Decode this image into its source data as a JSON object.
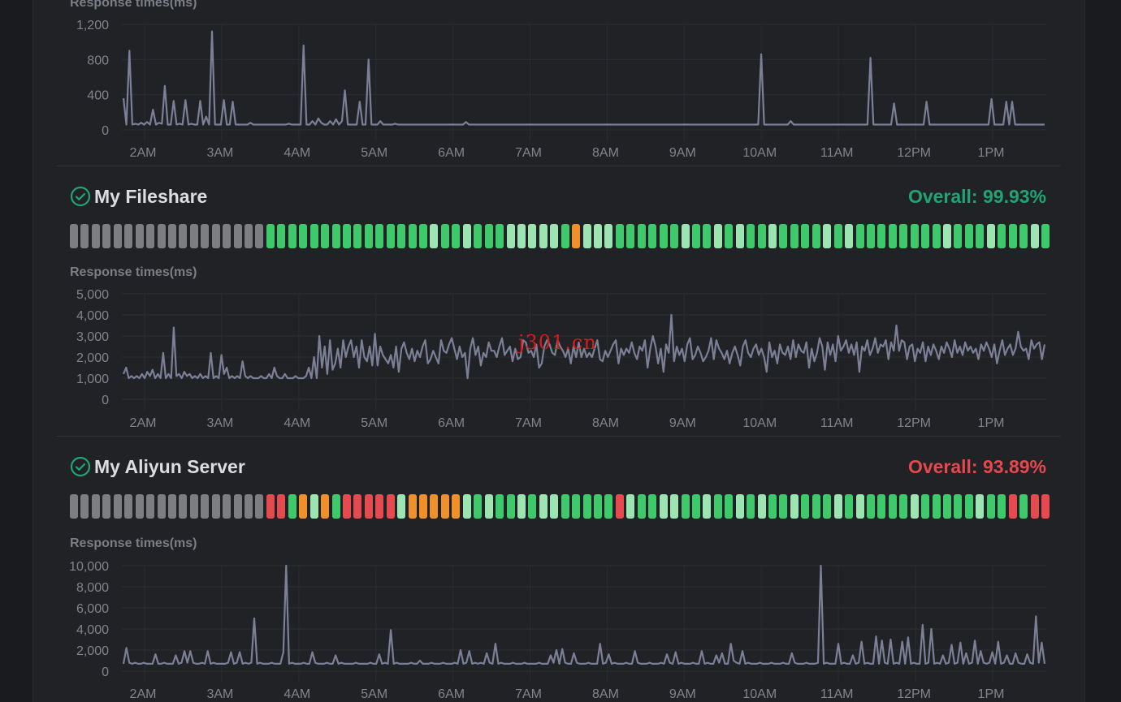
{
  "colors": {
    "up": "#3ec96a",
    "up_light": "#9de4b3",
    "down": "#e54a4e",
    "warn": "#f0902a",
    "empty": "#7d7e82",
    "good": "#1fa574",
    "bad": "#e5484d",
    "line": "#7b8097"
  },
  "x_labels": [
    "2AM",
    "3AM",
    "4AM",
    "5AM",
    "6AM",
    "7AM",
    "8AM",
    "9AM",
    "10AM",
    "11AM",
    "12PM",
    "1PM"
  ],
  "monitors": [
    {
      "name": "",
      "overall": "",
      "rt_label": "Response times(ms)"
    },
    {
      "name": "My Fileshare",
      "overall": "Overall: 99.93%",
      "status": "good",
      "rt_label": "Response times(ms)",
      "bars": "eeeeeeeeeeeeeeeeeegggggggggggggggLggLgggLLLLLgowLLggggggLggLgLggLggggLgLggggggggLgggLgggLgggLggLggggLgLgLgggggL"
    },
    {
      "name": "My Aliyun Server",
      "overall": "Overall: 93.89%",
      "status": "bad",
      "rt_label": "Response times(ms)",
      "bars": "eeeeeeeeeeeeeeeeeerrgoLogrrrrrLoooooLgLggLgLLgggggrLggLLggLggLgLggLgggLgLggggLgggggLggrgrrrrrggLgLLLgg"
    }
  ],
  "chart_data": [
    {
      "type": "line",
      "title": "Response times(ms)",
      "x_ticks": [
        "2AM",
        "3AM",
        "4AM",
        "5AM",
        "6AM",
        "7AM",
        "8AM",
        "9AM",
        "10AM",
        "11AM",
        "12PM",
        "1PM"
      ],
      "y_ticks": [
        "0",
        "400",
        "800",
        "1,200"
      ],
      "ylim": [
        0,
        1200
      ],
      "series": [
        {
          "values": [
            360,
            60,
            900,
            60,
            70,
            60,
            80,
            60,
            90,
            60,
            230,
            60,
            80,
            70,
            500,
            60,
            60,
            330,
            60,
            70,
            60,
            340,
            60,
            70,
            60,
            60,
            330,
            60,
            150,
            60,
            1120,
            60,
            60,
            60,
            340,
            60,
            60,
            320,
            60,
            60,
            60,
            60,
            60,
            80,
            60,
            60,
            60,
            60,
            60,
            60,
            60,
            60,
            60,
            60,
            60,
            60,
            70,
            60,
            60,
            60,
            60,
            960,
            60,
            60,
            100,
            60,
            130,
            80,
            60,
            60,
            100,
            60,
            120,
            60,
            100,
            450,
            60,
            60,
            60,
            60,
            320,
            60,
            60,
            800,
            60,
            60,
            60,
            100,
            60,
            60,
            60,
            60,
            70,
            60,
            60,
            60,
            60,
            60,
            60,
            60,
            60,
            60,
            60,
            60,
            60,
            60,
            60,
            60,
            60,
            60,
            60,
            60,
            60,
            60,
            60,
            60,
            90,
            60,
            60,
            60,
            60,
            60,
            60,
            60,
            60,
            60,
            60,
            60,
            60,
            60,
            60,
            60,
            60,
            60,
            60,
            60,
            60,
            60,
            60,
            60,
            60,
            60,
            60,
            60,
            60,
            60,
            60,
            60,
            60,
            60,
            60,
            60,
            60,
            60,
            60,
            60,
            60,
            60,
            60,
            60,
            60,
            60,
            60,
            60,
            60,
            60,
            60,
            60,
            60,
            60,
            60,
            60,
            60,
            60,
            60,
            60,
            60,
            60,
            60,
            60,
            60,
            60,
            60,
            60,
            60,
            60,
            60,
            60,
            60,
            60,
            60,
            60,
            60,
            60,
            60,
            60,
            60,
            60,
            60,
            60,
            60,
            60,
            60,
            60,
            60,
            60,
            60,
            60,
            60,
            60,
            60,
            60,
            60,
            60,
            60,
            60,
            860,
            60,
            60,
            60,
            60,
            60,
            60,
            60,
            60,
            60,
            100,
            60,
            60,
            60,
            60,
            60,
            60,
            60,
            60,
            60,
            60,
            60,
            60,
            60,
            60,
            60,
            60,
            60,
            60,
            60,
            60,
            60,
            60,
            60,
            60,
            60,
            60,
            820,
            60,
            60,
            60,
            60,
            60,
            60,
            60,
            300,
            60,
            60,
            60,
            60,
            60,
            60,
            60,
            60,
            60,
            60,
            320,
            60,
            60,
            60,
            60,
            60,
            60,
            60,
            60,
            60,
            60,
            60,
            60,
            60,
            60,
            60,
            60,
            60,
            60,
            60,
            60,
            60,
            350,
            60,
            60,
            60,
            60,
            320,
            60,
            320,
            60,
            60,
            60,
            60,
            60,
            60,
            60,
            60,
            60,
            60,
            60
          ]
        }
      ]
    },
    {
      "type": "line",
      "title": "Response times(ms)",
      "x_ticks": [
        "2AM",
        "3AM",
        "4AM",
        "5AM",
        "6AM",
        "7AM",
        "8AM",
        "9AM",
        "10AM",
        "11AM",
        "12PM",
        "1PM"
      ],
      "y_ticks": [
        "0",
        "1,000",
        "2,000",
        "3,000",
        "4,000",
        "5,000"
      ],
      "ylim": [
        0,
        5000
      ],
      "series": [
        {
          "values": [
            1200,
            1500,
            1000,
            1100,
            1000,
            1100,
            1000,
            1200,
            1000,
            1300,
            1100,
            1400,
            1000,
            1200,
            1000,
            2200,
            1000,
            1200,
            1000,
            3400,
            1100,
            1200,
            1000,
            1300,
            1100,
            1200,
            1000,
            1100,
            1000,
            1200,
            1000,
            1100,
            1000,
            2200,
            1000,
            1100,
            1000,
            2100,
            1200,
            1500,
            1000,
            1100,
            1000,
            1100,
            1000,
            1800,
            1100,
            1000,
            1100,
            1000,
            1000,
            1000,
            1100,
            1000,
            1000,
            1200,
            1000,
            1500,
            1100,
            1000,
            1000,
            1200,
            1000,
            1000,
            1000,
            1100,
            1000,
            1000,
            1000,
            1100,
            1500,
            1000,
            2000,
            1000,
            3000,
            1500,
            2500,
            1200,
            2800,
            1400,
            1700,
            2400,
            1500,
            2800,
            2000,
            2500,
            2800,
            2000,
            2500,
            1500,
            2800,
            2000,
            1800,
            2500,
            1600,
            3100,
            1600,
            2500,
            2100,
            1900,
            1700,
            2100,
            1500,
            2500,
            1300,
            2400,
            2700,
            2200,
            1900,
            2400,
            1800,
            2300,
            2000,
            2500,
            2800,
            1700,
            1900,
            2300,
            2000,
            1700,
            2800,
            2300,
            2200,
            2600,
            2900,
            2400,
            1900,
            2500,
            2000,
            2200,
            1000,
            2400,
            2900,
            2100,
            2500,
            1600,
            2200,
            2000,
            2700,
            2300,
            2300,
            2000,
            2500,
            2900,
            2100,
            2300,
            2500,
            1800,
            2400,
            1900,
            2000,
            2800,
            2700,
            2200,
            2300,
            2000,
            2600,
            1500,
            1700,
            2500,
            2800,
            2600,
            2200,
            2100,
            2800,
            2500,
            2300,
            2000,
            2400,
            1700,
            2500,
            2000,
            2700,
            2000,
            2400,
            2000,
            2200,
            2000,
            2400,
            2800,
            1900,
            1800,
            2300,
            2000,
            2300,
            2600,
            2800,
            1700,
            2400,
            2100,
            2400,
            2200,
            2700,
            2200,
            1900,
            2500,
            2300,
            2800,
            1500,
            2400,
            3000,
            2500,
            1700,
            2400,
            1300,
            2600,
            2200,
            4000,
            1800,
            2500,
            2100,
            2400,
            1800,
            2600,
            2900,
            1900,
            2100,
            2500,
            2200,
            1800,
            2000,
            2300,
            2900,
            1900,
            2800,
            2400,
            2200,
            1900,
            2300,
            1700,
            2200,
            2500,
            2100,
            1600,
            2500,
            2800,
            2200,
            2000,
            2400,
            2600,
            2100,
            2400,
            2000,
            1300,
            2700,
            2000,
            2300,
            1700,
            2600,
            2200,
            2100,
            2500,
            1900,
            2800,
            2000,
            2600,
            2300,
            2200,
            2700,
            1500,
            2400,
            1800,
            2200,
            2900,
            2500,
            1400,
            2700,
            2100,
            2600,
            1800,
            3000,
            2300,
            2500,
            2800,
            2200,
            2600,
            2100,
            2700,
            1300,
            2500,
            2300,
            2800,
            2100,
            2400,
            2900,
            2200,
            2600,
            2500,
            2800,
            1900,
            2700,
            2300,
            3500,
            2300,
            2800,
            2700,
            1900,
            2500,
            2600,
            1800,
            2400,
            2200,
            2700,
            1800,
            2500,
            2100,
            2600,
            2300,
            1900,
            2500,
            2200,
            2700,
            2400,
            2000,
            2800,
            2200,
            2500,
            2100,
            2700,
            2300,
            2500,
            2200,
            2400,
            1900,
            2600,
            2300,
            2700,
            2400,
            2000,
            2600,
            1700,
            2300,
            2800,
            2100,
            2400,
            2600,
            2100,
            2400,
            3200,
            2500,
            2300,
            2400,
            1900,
            2800,
            2400,
            2600,
            2700,
            1900,
            2600
          ]
        }
      ]
    },
    {
      "type": "line",
      "title": "Response times(ms)",
      "x_ticks": [
        "2AM",
        "3AM",
        "4AM",
        "5AM",
        "6AM",
        "7AM",
        "8AM",
        "9AM",
        "10AM",
        "11AM",
        "12PM",
        "1PM"
      ],
      "y_ticks": [
        "0",
        "2,000",
        "4,000",
        "6,000",
        "8,000",
        "10,000"
      ],
      "ylim": [
        0,
        10000
      ],
      "series": [
        {
          "values": [
            700,
            2200,
            800,
            700,
            800,
            700,
            700,
            800,
            700,
            700,
            700,
            1600,
            700,
            700,
            800,
            700,
            700,
            700,
            1500,
            700,
            800,
            1900,
            800,
            1900,
            800,
            700,
            700,
            800,
            700,
            1900,
            700,
            800,
            700,
            700,
            700,
            700,
            800,
            1800,
            700,
            800,
            1800,
            700,
            800,
            700,
            800,
            5000,
            700,
            800,
            700,
            700,
            700,
            800,
            700,
            700,
            700,
            1800,
            10000,
            700,
            800,
            700,
            700,
            700,
            800,
            700,
            700,
            1800,
            800,
            700,
            700,
            700,
            800,
            700,
            700,
            1500,
            700,
            800,
            700,
            700,
            700,
            700,
            800,
            700,
            700,
            700,
            700,
            800,
            700,
            700,
            1600,
            700,
            800,
            700,
            3900,
            700,
            800,
            700,
            700,
            700,
            700,
            800,
            700,
            700,
            1000,
            700,
            700,
            700,
            800,
            700,
            700,
            700,
            800,
            700,
            700,
            700,
            800,
            700,
            2000,
            700,
            800,
            1900,
            700,
            800,
            700,
            800,
            700,
            1700,
            800,
            700,
            2600,
            700,
            800,
            700,
            700,
            700,
            800,
            700,
            700,
            700,
            800,
            700,
            700,
            700,
            700,
            800,
            700,
            700,
            700,
            1500,
            800,
            2000,
            700,
            2100,
            800,
            700,
            700,
            1700,
            800,
            700,
            700,
            700,
            800,
            700,
            700,
            700,
            2600,
            700,
            800,
            1600,
            700,
            800,
            700,
            700,
            700,
            800,
            700,
            700,
            1900,
            800,
            700,
            700,
            700,
            800,
            700,
            700,
            700,
            800,
            700,
            1600,
            800,
            700,
            1800,
            700,
            800,
            700,
            700,
            700,
            800,
            700,
            700,
            1900,
            700,
            800,
            700,
            700,
            1500,
            800,
            1700,
            700,
            700,
            2600,
            1000,
            800,
            700,
            1900,
            700,
            800,
            700,
            700,
            700,
            800,
            700,
            700,
            700,
            800,
            700,
            700,
            700,
            800,
            700,
            700,
            1700,
            800,
            700,
            700,
            700,
            800,
            700,
            700,
            700,
            800,
            10000,
            700,
            800,
            700,
            700,
            700,
            2600,
            700,
            800,
            700,
            700,
            1500,
            700,
            800,
            2800,
            700,
            800,
            700,
            700,
            3300,
            700,
            2900,
            800,
            700,
            3000,
            700,
            800,
            700,
            2800,
            700,
            3200,
            700,
            800,
            700,
            700,
            4400,
            700,
            800,
            4000,
            700,
            800,
            700,
            1500,
            700,
            800,
            2500,
            700,
            800,
            2700,
            700,
            1700,
            700,
            800,
            2900,
            700,
            1900,
            800,
            700,
            800,
            1800,
            700,
            2800,
            700,
            800,
            1500,
            700,
            700,
            1700,
            800,
            700,
            700,
            1600,
            800,
            700,
            5200,
            800,
            2700,
            700
          ]
        }
      ]
    }
  ]
}
